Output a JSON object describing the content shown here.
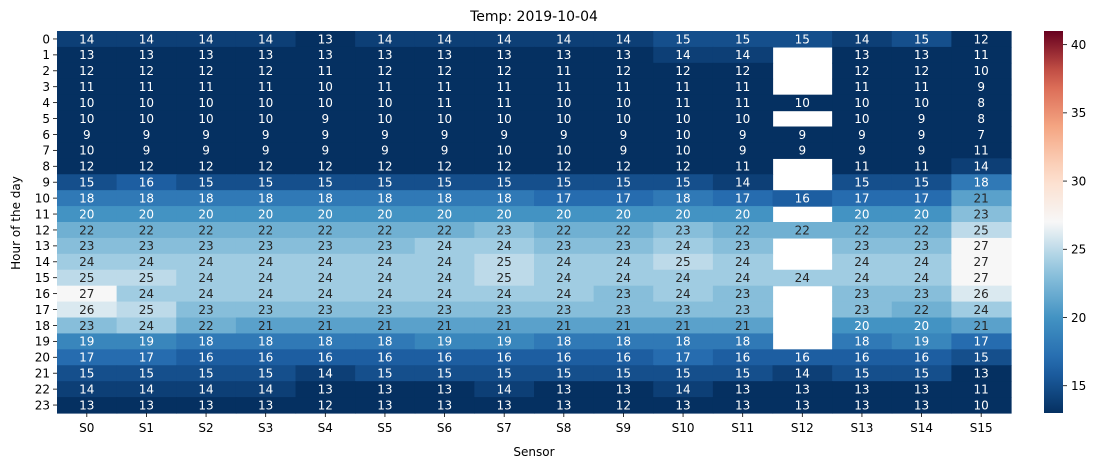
{
  "chart_data": {
    "type": "heatmap",
    "title": "Temp: 2019-10-04",
    "xlabel": "Sensor",
    "ylabel": "Hour of the day",
    "x_categories": [
      "S0",
      "S1",
      "S2",
      "S3",
      "S4",
      "S5",
      "S6",
      "S7",
      "S8",
      "S9",
      "S10",
      "S11",
      "S12",
      "S13",
      "S14",
      "S15"
    ],
    "y_categories": [
      "0",
      "1",
      "2",
      "3",
      "4",
      "5",
      "6",
      "7",
      "8",
      "9",
      "10",
      "11",
      "12",
      "13",
      "14",
      "15",
      "16",
      "17",
      "18",
      "19",
      "20",
      "21",
      "22",
      "23"
    ],
    "colormap": "RdBu_r",
    "color_range": [
      13,
      41
    ],
    "colorbar_ticks": [
      15,
      20,
      25,
      30,
      35,
      40
    ],
    "values": [
      [
        14,
        14,
        14,
        14,
        13,
        14,
        14,
        14,
        14,
        14,
        15,
        15,
        15,
        14,
        15,
        12
      ],
      [
        13,
        13,
        13,
        13,
        13,
        13,
        13,
        13,
        13,
        13,
        14,
        14,
        null,
        13,
        13,
        11
      ],
      [
        12,
        12,
        12,
        12,
        11,
        12,
        12,
        12,
        11,
        12,
        12,
        12,
        null,
        12,
        12,
        10
      ],
      [
        11,
        11,
        11,
        11,
        10,
        11,
        11,
        11,
        11,
        11,
        11,
        11,
        null,
        11,
        11,
        9
      ],
      [
        10,
        10,
        10,
        10,
        10,
        10,
        11,
        11,
        10,
        10,
        11,
        11,
        10,
        10,
        10,
        8
      ],
      [
        10,
        10,
        10,
        10,
        9,
        10,
        10,
        10,
        10,
        10,
        10,
        10,
        null,
        10,
        9,
        8
      ],
      [
        9,
        9,
        9,
        9,
        9,
        9,
        9,
        9,
        9,
        9,
        10,
        9,
        9,
        9,
        9,
        7
      ],
      [
        10,
        9,
        9,
        9,
        9,
        9,
        9,
        10,
        10,
        9,
        10,
        9,
        9,
        9,
        9,
        11
      ],
      [
        12,
        12,
        12,
        12,
        12,
        12,
        12,
        12,
        12,
        12,
        12,
        11,
        null,
        11,
        11,
        14
      ],
      [
        15,
        16,
        15,
        15,
        15,
        15,
        15,
        15,
        15,
        15,
        15,
        14,
        null,
        15,
        15,
        18
      ],
      [
        18,
        18,
        18,
        18,
        18,
        18,
        18,
        18,
        17,
        17,
        18,
        17,
        16,
        17,
        17,
        21
      ],
      [
        20,
        20,
        20,
        20,
        20,
        20,
        20,
        20,
        20,
        20,
        20,
        20,
        null,
        20,
        20,
        23
      ],
      [
        22,
        22,
        22,
        22,
        22,
        22,
        22,
        23,
        22,
        22,
        23,
        22,
        22,
        22,
        22,
        25
      ],
      [
        23,
        23,
        23,
        23,
        23,
        23,
        24,
        24,
        23,
        23,
        24,
        23,
        null,
        23,
        23,
        27
      ],
      [
        24,
        24,
        24,
        24,
        24,
        24,
        24,
        25,
        24,
        24,
        25,
        24,
        null,
        24,
        24,
        27
      ],
      [
        25,
        25,
        24,
        24,
        24,
        24,
        24,
        25,
        24,
        24,
        24,
        24,
        24,
        24,
        24,
        27
      ],
      [
        27,
        24,
        24,
        24,
        24,
        24,
        24,
        24,
        24,
        23,
        24,
        23,
        null,
        23,
        23,
        26
      ],
      [
        26,
        25,
        23,
        23,
        23,
        23,
        23,
        23,
        23,
        23,
        23,
        23,
        null,
        23,
        22,
        24
      ],
      [
        23,
        24,
        22,
        21,
        21,
        21,
        21,
        21,
        21,
        21,
        21,
        21,
        null,
        20,
        20,
        21
      ],
      [
        19,
        19,
        18,
        18,
        18,
        18,
        19,
        19,
        18,
        18,
        18,
        18,
        null,
        18,
        19,
        17
      ],
      [
        17,
        17,
        16,
        16,
        16,
        16,
        16,
        16,
        16,
        16,
        17,
        16,
        16,
        16,
        16,
        15
      ],
      [
        15,
        15,
        15,
        15,
        14,
        15,
        15,
        15,
        15,
        15,
        15,
        15,
        14,
        15,
        15,
        13
      ],
      [
        14,
        14,
        14,
        14,
        13,
        13,
        13,
        14,
        13,
        13,
        14,
        13,
        13,
        13,
        13,
        11
      ],
      [
        13,
        13,
        13,
        13,
        12,
        13,
        13,
        13,
        13,
        12,
        13,
        13,
        13,
        13,
        13,
        10
      ]
    ]
  }
}
